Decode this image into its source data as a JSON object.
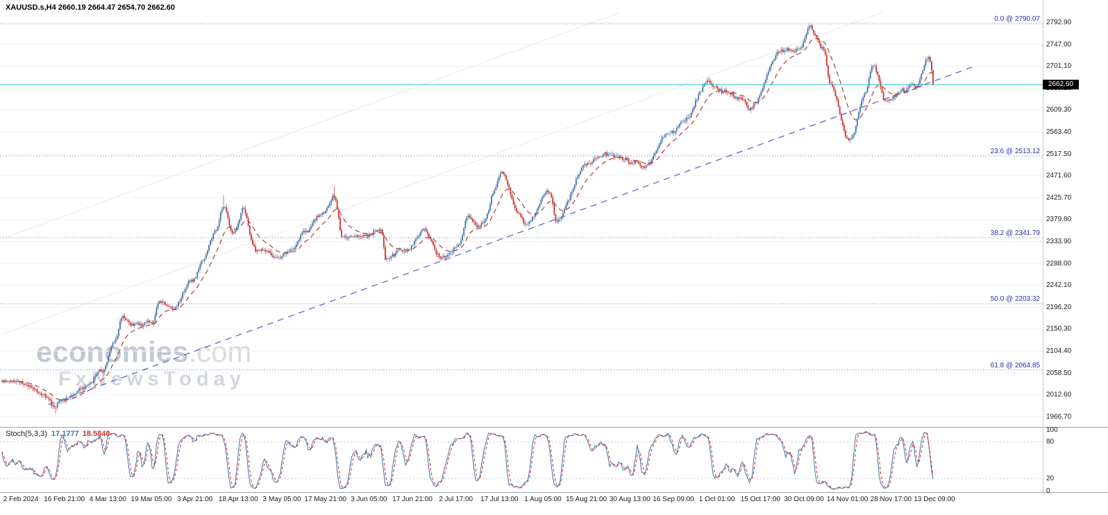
{
  "header": {
    "symbol_line": "XAUUSD.s,H4 2660.19 2664.47 2654.70 2662.60"
  },
  "watermark": {
    "brand": "economies",
    "brand_suffix": ".com",
    "subtitle": "FxNewsToday"
  },
  "chart_data": {
    "type": "candlestick",
    "symbol": "XAUUSD.s",
    "timeframe": "H4",
    "ohlc": {
      "open": 2660.19,
      "high": 2664.47,
      "low": 2654.7,
      "close": 2662.6
    },
    "current_price": "2662.60",
    "ylim": [
      1966.7,
      2792.9
    ],
    "y_axis": {
      "first_tick": 2792.9,
      "step": 45.9,
      "count": 19
    },
    "x_axis_labels": [
      "2 Feb 2024",
      "16 Feb 21:00",
      "4 Mar 13:00",
      "19 Mar 05:00",
      "3 Apr 21:00",
      "18 Apr 13:00",
      "3 May 05:00",
      "17 May 21:00",
      "3 Jun 05:00",
      "17 Jun 21:00",
      "2 Jul 17:00",
      "17 Jul 13:00",
      "1 Aug 05:00",
      "15 Aug 21:00",
      "30 Aug 13:00",
      "16 Sep 09:00",
      "1 Oct 01:00",
      "15 Oct 17:00",
      "30 Oct 09:00",
      "14 Nov 01:00",
      "28 Nov 17:00",
      "13 Dec 09:00"
    ],
    "fibonacci_levels": [
      {
        "label": "0.0 @ 2790.07",
        "price": 2790.07
      },
      {
        "label": "23.6 @ 2513.12",
        "price": 2513.12
      },
      {
        "label": "38.2 @ 2341.79",
        "price": 2341.79
      },
      {
        "label": "50.0 @ 2203.32",
        "price": 2203.32
      },
      {
        "label": "61.8 @ 2064.85",
        "price": 2064.85
      }
    ],
    "trendline": {
      "p1": {
        "t": 0.03,
        "price": 1992
      },
      "p2": {
        "t": 1.045,
        "price": 2702
      }
    },
    "channel_lines": [
      {
        "p1": {
          "t": -0.02,
          "price": 2140
        },
        "p2": {
          "t": 1.06,
          "price": 2896
        }
      },
      {
        "p1": {
          "t": -0.02,
          "price": 2340
        },
        "p2": {
          "t": 0.7,
          "price": 2845
        }
      }
    ],
    "ma_period": 16,
    "price_anchors": [
      [
        0.0,
        2042
      ],
      [
        0.013,
        2028
      ],
      [
        0.03,
        2008
      ],
      [
        0.038,
        1986
      ],
      [
        0.044,
        2000
      ],
      [
        0.067,
        2022
      ],
      [
        0.089,
        2058
      ],
      [
        0.102,
        2120
      ],
      [
        0.111,
        2178
      ],
      [
        0.124,
        2158
      ],
      [
        0.143,
        2162
      ],
      [
        0.152,
        2208
      ],
      [
        0.168,
        2188
      ],
      [
        0.187,
        2252
      ],
      [
        0.2,
        2300
      ],
      [
        0.213,
        2352
      ],
      [
        0.222,
        2408
      ],
      [
        0.232,
        2350
      ],
      [
        0.244,
        2398
      ],
      [
        0.257,
        2315
      ],
      [
        0.282,
        2300
      ],
      [
        0.298,
        2318
      ],
      [
        0.311,
        2358
      ],
      [
        0.33,
        2390
      ],
      [
        0.343,
        2432
      ],
      [
        0.352,
        2338
      ],
      [
        0.375,
        2345
      ],
      [
        0.394,
        2358
      ],
      [
        0.4,
        2298
      ],
      [
        0.419,
        2318
      ],
      [
        0.441,
        2355
      ],
      [
        0.46,
        2300
      ],
      [
        0.479,
        2332
      ],
      [
        0.489,
        2388
      ],
      [
        0.502,
        2362
      ],
      [
        0.527,
        2472
      ],
      [
        0.543,
        2405
      ],
      [
        0.552,
        2372
      ],
      [
        0.578,
        2438
      ],
      [
        0.587,
        2382
      ],
      [
        0.622,
        2502
      ],
      [
        0.635,
        2522
      ],
      [
        0.66,
        2508
      ],
      [
        0.682,
        2492
      ],
      [
        0.708,
        2555
      ],
      [
        0.727,
        2588
      ],
      [
        0.752,
        2668
      ],
      [
        0.768,
        2650
      ],
      [
        0.79,
        2632
      ],
      [
        0.797,
        2615
      ],
      [
        0.832,
        2728
      ],
      [
        0.854,
        2742
      ],
      [
        0.863,
        2786
      ],
      [
        0.879,
        2738
      ],
      [
        0.886,
        2665
      ],
      [
        0.908,
        2548
      ],
      [
        0.924,
        2640
      ],
      [
        0.933,
        2705
      ],
      [
        0.946,
        2628
      ],
      [
        0.965,
        2642
      ],
      [
        0.978,
        2655
      ],
      [
        0.994,
        2718
      ],
      [
        1.0,
        2662.6
      ]
    ],
    "key_points": [
      {
        "t": 0.038,
        "type": "low",
        "price": 1973
      },
      {
        "t": 0.222,
        "type": "high",
        "price": 2431
      },
      {
        "t": 0.343,
        "type": "high",
        "price": 2450
      },
      {
        "t": 0.527,
        "type": "high",
        "price": 2483
      },
      {
        "t": 0.863,
        "type": "high",
        "price": 2790.07
      },
      {
        "t": 0.908,
        "type": "low",
        "price": 2541
      },
      {
        "t": 1.0,
        "type": "close",
        "price": 2662.6
      }
    ],
    "stoch": {
      "name": "Stoch(5,3,3)",
      "k_value": "17.1777",
      "d_value": "18.5848",
      "levels": [
        100,
        80,
        20,
        0
      ]
    },
    "colors": {
      "up": "#4473a8",
      "down": "#cc2f2f",
      "ma": "#b13a2c",
      "trend": "#6671cf",
      "fib_line": "#8d8dcb",
      "fib_text": "#2b2bb4",
      "price_line": "#25c3ce",
      "price_box_bg": "#000000",
      "price_box_text": "#ffffff",
      "grid": "#f3f3f7",
      "channel": "#e9e9ef",
      "stoch_k": "#3f72a8",
      "stoch_d": "#cc2f2f",
      "stoch_level": "#c9c9d2",
      "axis_text": "#1a1a1a",
      "separator": "#9aa0a6",
      "axis_border": "#c5c9ce"
    }
  }
}
